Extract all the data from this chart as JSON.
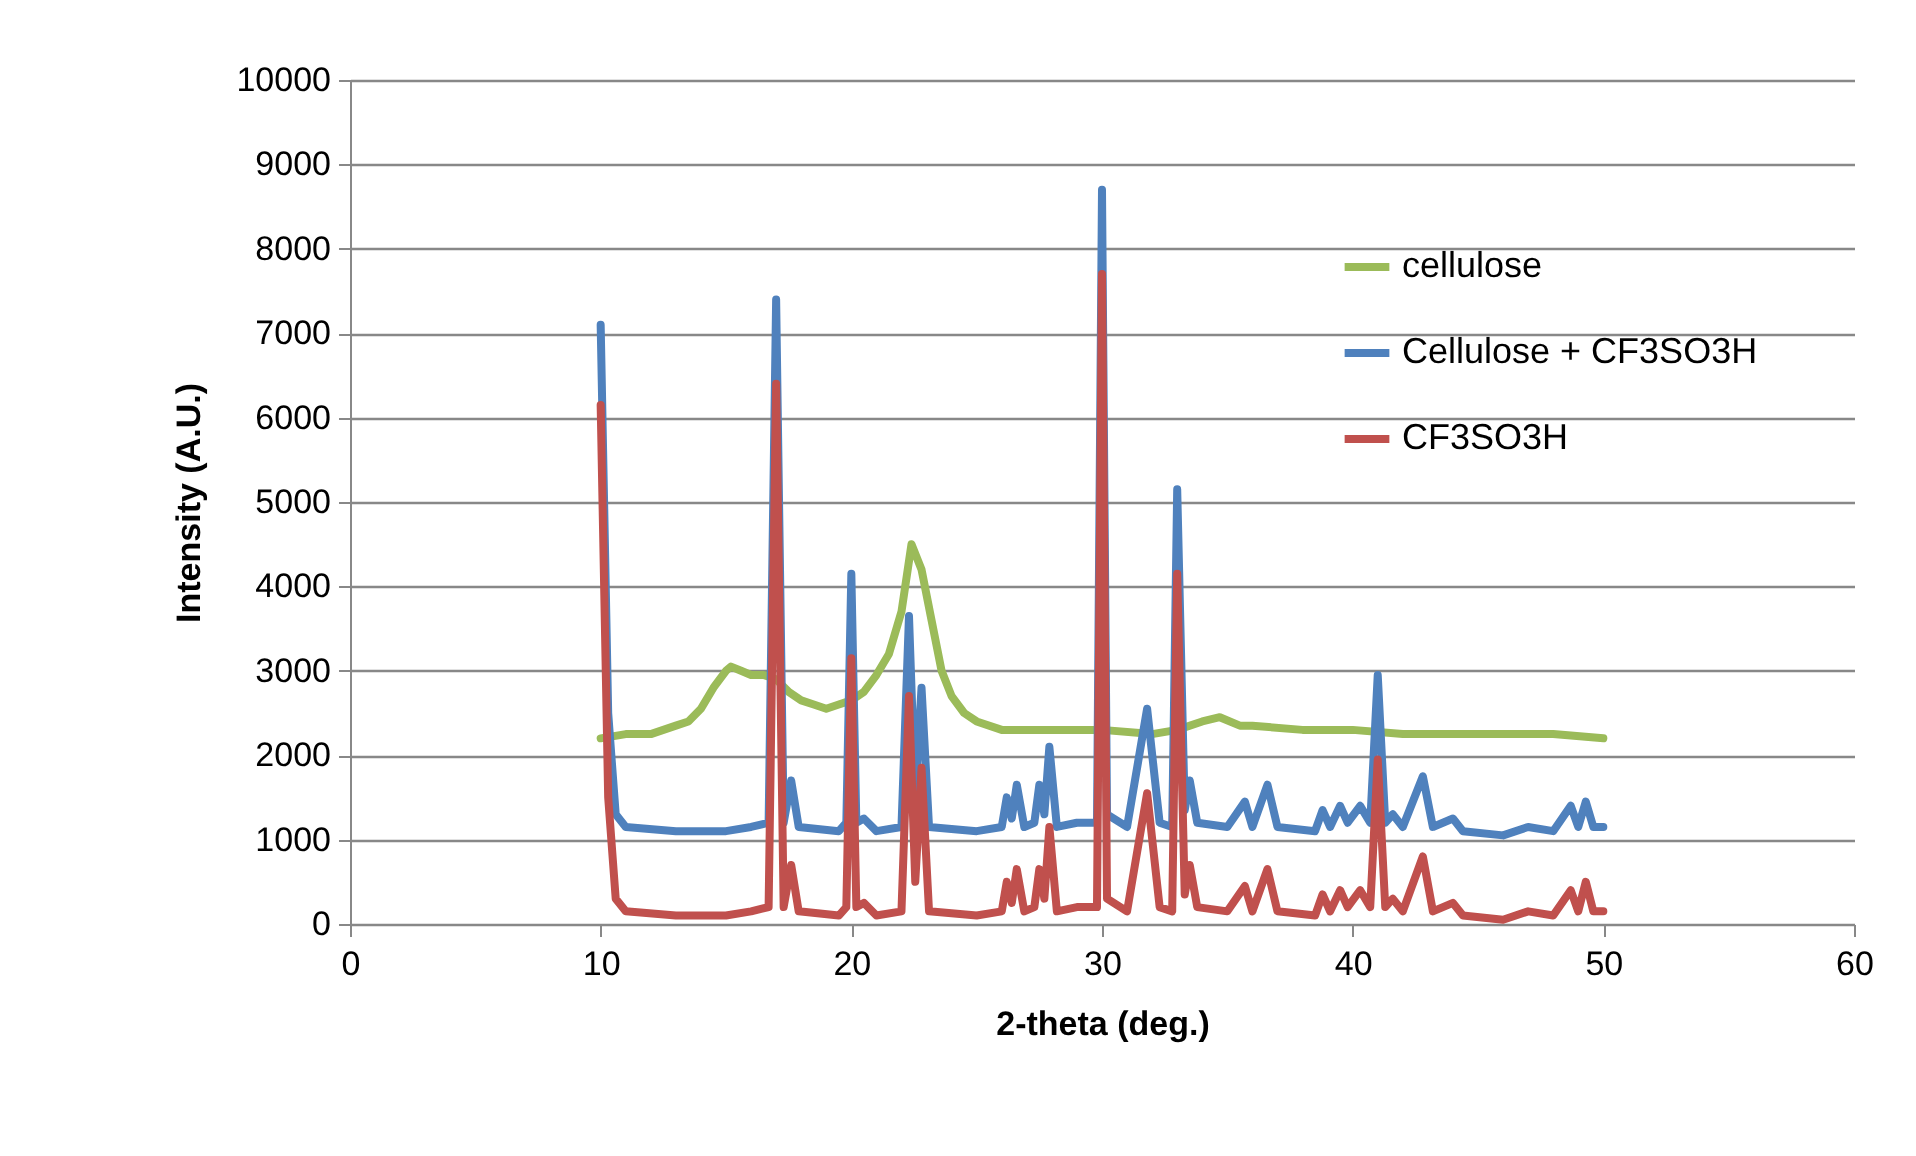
{
  "chart_data": {
    "type": "line",
    "xlabel": "2-theta (deg.)",
    "ylabel": "Intensity (A.U.)",
    "xlim": [
      0,
      60
    ],
    "xticks": [
      0,
      10,
      20,
      30,
      40,
      50,
      60
    ],
    "ylim": [
      0,
      10000
    ],
    "yticks": [
      0,
      1000,
      2000,
      3000,
      4000,
      5000,
      6000,
      7000,
      8000,
      9000,
      10000
    ],
    "grid": "y",
    "legend": "right",
    "series": [
      {
        "name": "cellulose",
        "color": "#9bbb59",
        "x": [
          10,
          11,
          12,
          13,
          13.5,
          14,
          14.5,
          15,
          15.2,
          15.6,
          16,
          16.5,
          17,
          17.5,
          18,
          18.5,
          19,
          19.5,
          20,
          20.5,
          21,
          21.5,
          22,
          22.4,
          22.8,
          23.2,
          23.6,
          24,
          24.5,
          25,
          26,
          28,
          30,
          32,
          33,
          34,
          34.7,
          35.5,
          36,
          38,
          40,
          42,
          44,
          46,
          48,
          50
        ],
        "values": [
          2200,
          2250,
          2250,
          2350,
          2400,
          2550,
          2800,
          3000,
          3050,
          3000,
          2950,
          2950,
          2900,
          2750,
          2650,
          2600,
          2550,
          2600,
          2650,
          2750,
          2950,
          3200,
          3700,
          4500,
          4200,
          3600,
          3000,
          2700,
          2500,
          2400,
          2300,
          2300,
          2300,
          2250,
          2300,
          2400,
          2450,
          2350,
          2350,
          2300,
          2300,
          2250,
          2250,
          2250,
          2250,
          2200
        ]
      },
      {
        "name": "Cellulose + CF3SO3H",
        "color": "#4f81bd",
        "x": [
          10,
          10.3,
          10.6,
          11,
          13,
          15,
          16,
          16.7,
          17,
          17.3,
          17.6,
          17.9,
          19.5,
          19.8,
          20,
          20.2,
          20.5,
          21,
          22,
          22.3,
          22.55,
          22.8,
          23.1,
          25,
          26,
          26.2,
          26.4,
          26.6,
          26.9,
          27.3,
          27.5,
          27.7,
          27.9,
          28.2,
          29,
          29.8,
          30,
          30.2,
          31,
          31.8,
          32.3,
          32.8,
          33,
          33.3,
          33.5,
          33.8,
          35,
          35.7,
          36,
          36.6,
          37,
          38.5,
          38.8,
          39.1,
          39.5,
          39.8,
          40.3,
          40.7,
          41,
          41.3,
          41.6,
          42,
          42.8,
          43.2,
          44,
          44.4,
          46,
          47,
          48,
          48.7,
          49,
          49.3,
          49.6,
          50
        ],
        "values": [
          7100,
          2500,
          1300,
          1150,
          1100,
          1100,
          1150,
          1200,
          7400,
          1200,
          1700,
          1150,
          1100,
          1200,
          4150,
          1200,
          1250,
          1100,
          1150,
          3650,
          1500,
          2800,
          1150,
          1100,
          1150,
          1500,
          1250,
          1650,
          1150,
          1200,
          1650,
          1300,
          2100,
          1150,
          1200,
          1200,
          8700,
          1300,
          1150,
          2550,
          1200,
          1150,
          5150,
          1350,
          1700,
          1200,
          1150,
          1450,
          1150,
          1650,
          1150,
          1100,
          1350,
          1150,
          1400,
          1200,
          1400,
          1200,
          2950,
          1200,
          1300,
          1150,
          1750,
          1150,
          1250,
          1100,
          1050,
          1150,
          1100,
          1400,
          1150,
          1450,
          1150,
          1150
        ]
      },
      {
        "name": "CF3SO3H",
        "color": "#c0504d",
        "x": [
          10,
          10.3,
          10.6,
          11,
          13,
          15,
          16,
          16.7,
          17,
          17.3,
          17.6,
          17.9,
          19.5,
          19.8,
          20,
          20.2,
          20.5,
          21,
          22,
          22.3,
          22.55,
          22.8,
          23.1,
          25,
          26,
          26.2,
          26.4,
          26.6,
          26.9,
          27.3,
          27.5,
          27.7,
          27.9,
          28.2,
          29,
          29.8,
          30,
          30.2,
          31,
          31.8,
          32.3,
          32.8,
          33,
          33.3,
          33.5,
          33.8,
          35,
          35.7,
          36,
          36.6,
          37,
          38.5,
          38.8,
          39.1,
          39.5,
          39.8,
          40.3,
          40.7,
          41,
          41.3,
          41.6,
          42,
          42.8,
          43.2,
          44,
          44.4,
          46,
          47,
          48,
          48.7,
          49,
          49.3,
          49.6,
          50
        ],
        "values": [
          6150,
          1500,
          300,
          150,
          100,
          100,
          150,
          200,
          6400,
          200,
          700,
          150,
          100,
          200,
          3150,
          200,
          250,
          100,
          150,
          2700,
          500,
          1850,
          150,
          100,
          150,
          500,
          250,
          650,
          150,
          200,
          650,
          300,
          1150,
          150,
          200,
          200,
          7700,
          300,
          150,
          1550,
          200,
          150,
          4150,
          350,
          700,
          200,
          150,
          450,
          150,
          650,
          150,
          100,
          350,
          150,
          400,
          200,
          400,
          200,
          1950,
          200,
          300,
          150,
          800,
          150,
          250,
          100,
          50,
          150,
          100,
          400,
          150,
          500,
          150,
          150
        ]
      }
    ]
  }
}
